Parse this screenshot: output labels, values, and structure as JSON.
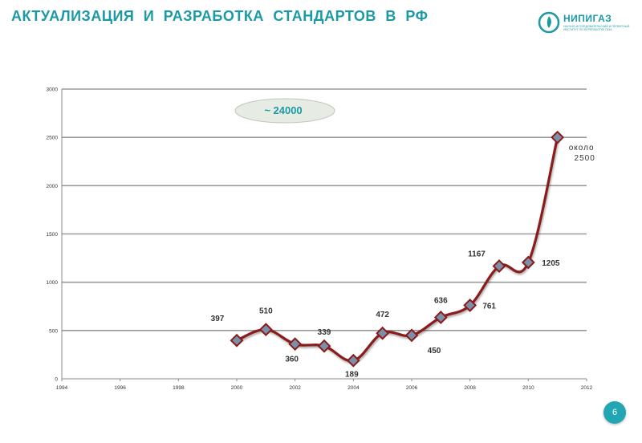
{
  "slide": {
    "title": "АКТУАЛИЗАЦИЯ И РАЗРАБОТКА СТАНДАРТОВ В РФ",
    "page_number": "6",
    "logo": {
      "name": "НИПИГАЗ",
      "subtitle": "НАУЧНО-ИССЛЕДОВАТЕЛЬСКИЙ И ПРОЕКТНЫЙ ИНСТИТУТ ПО ПЕРЕРАБОТКЕ ГАЗА"
    }
  },
  "colors": {
    "accent": "#1b9aa6",
    "line": "#8b1a1a",
    "marker": "#7a8fa8",
    "callout_fill": "#e6ece4"
  },
  "chart_data": {
    "type": "line",
    "title": "",
    "xlabel": "",
    "ylabel": "",
    "xlim": [
      1994,
      2012
    ],
    "ylim": [
      0,
      3000
    ],
    "x_ticks": [
      1994,
      1996,
      1998,
      2000,
      2002,
      2004,
      2006,
      2008,
      2010,
      2012
    ],
    "y_ticks": [
      0,
      500,
      1000,
      1500,
      2000,
      2500,
      3000
    ],
    "grid": "horizontal",
    "legend": "none",
    "series": [
      {
        "x": [
          2000,
          2001,
          2002,
          2003,
          2004,
          2005,
          2006,
          2007,
          2008,
          2009,
          2010,
          2011
        ],
        "y": [
          397,
          510,
          360,
          339,
          189,
          472,
          450,
          636,
          761,
          1167,
          1205,
          2500
        ]
      }
    ],
    "data_labels": [
      {
        "x": 2000,
        "text": "397"
      },
      {
        "x": 2001,
        "text": "510"
      },
      {
        "x": 2002,
        "text": "360"
      },
      {
        "x": 2003,
        "text": "339"
      },
      {
        "x": 2004,
        "text": "189"
      },
      {
        "x": 2005,
        "text": "472"
      },
      {
        "x": 2006,
        "text": "450"
      },
      {
        "x": 2007,
        "text": "636"
      },
      {
        "x": 2008,
        "text": "761"
      },
      {
        "x": 2009,
        "text": "1167"
      },
      {
        "x": 2010,
        "text": "1205"
      },
      {
        "x": 2011,
        "text": "около 2500"
      }
    ],
    "callout": "~ 24000"
  }
}
